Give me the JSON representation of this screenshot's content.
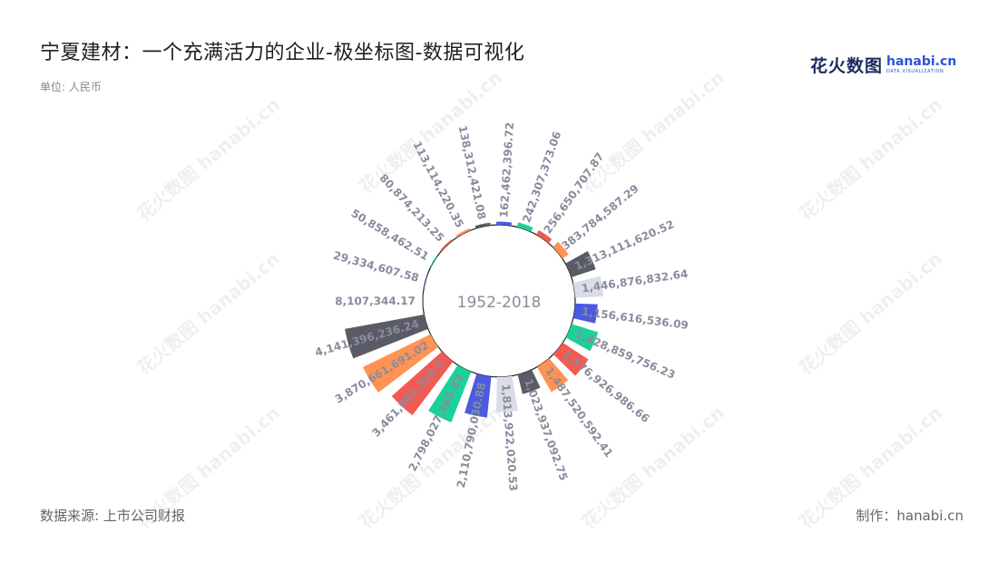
{
  "title": "宁夏建材：一个充满活力的企业-极坐标图-数据可视化",
  "unit": "单位: 人民币",
  "logo": {
    "main": "花火数图",
    "en": "hanabi.cn",
    "sub": "DATA VISUALIZATION"
  },
  "watermark": "花火数图 hanabi.cn",
  "source": "数据来源: 上市公司财报",
  "credit": "制作：hanabi.cn",
  "colors": {
    "palette": [
      "#4a5bdf",
      "#1bd19a",
      "#f25a52",
      "#ff9354",
      "#5a5b66",
      "#d9dde8"
    ]
  },
  "chart_data": {
    "type": "bar",
    "polar": true,
    "center_label": "1952-2018",
    "rmax": 4200000000,
    "values": [
      162462396.72,
      242307373.06,
      256650707.87,
      383784587.29,
      1313111620.52,
      1446876832.64,
      1156616536.09,
      1428859756.23,
      1576926986.66,
      1487520592.41,
      1023937092.75,
      1813922020.53,
      2110790030.88,
      2798027165.93,
      3461982329.5,
      3870661691.02,
      4141396236.24,
      8107344.17,
      29334607.58,
      50858462.51,
      80874213.25,
      113114220.35,
      138312421.08
    ],
    "labels": [
      "162,462,396.72",
      "242,307,373.06",
      "256,650,707.87",
      "383,784,587.29",
      "1,313,111,620.52",
      "1,446,876,832.64",
      "1,156,616,536.09",
      "1,428,859,756.23",
      "1,576,926,986.66",
      "1,487,520,592.41",
      "1,023,937,092.75",
      "1,813,922,020.53",
      "2,110,790,030.88",
      "2,798,027,165.93",
      "3,461,982,329.5",
      "3,870,661,691.02",
      "4,141,396,236.24",
      "8,107,344.17",
      "29,334,607.58",
      "50,858,462.51",
      "80,874,213.25",
      "113,114,220.35",
      "138,312,421.08"
    ]
  }
}
